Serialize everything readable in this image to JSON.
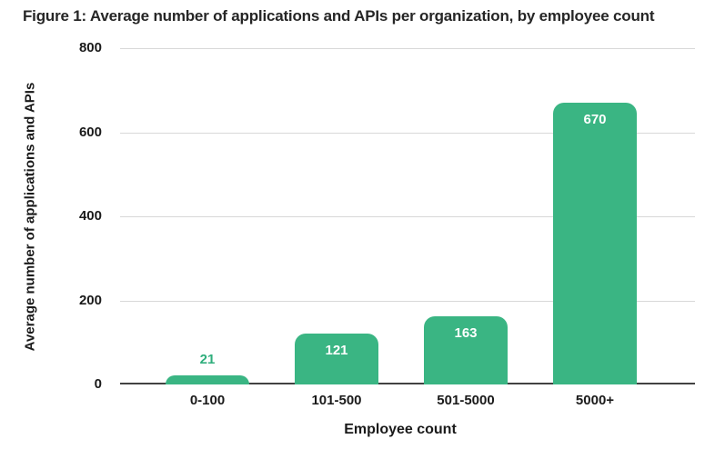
{
  "chart_data": {
    "type": "bar",
    "title": "Figure 1: Average number of applications and APIs per organization, by employee count",
    "categories": [
      "0-100",
      "101-500",
      "501-5000",
      "5000+"
    ],
    "values": [
      21,
      121,
      163,
      670
    ],
    "xlabel": "Employee count",
    "ylabel": "Average number of applications and APIs",
    "ylim": [
      0,
      800
    ],
    "yticks": [
      0,
      200,
      400,
      600,
      800
    ],
    "grid": true,
    "legend": "none",
    "bar_color": "#3AB583",
    "value_label_color_inside": "#FFFFFF",
    "value_label_color_outside": "#2FAE7C",
    "gridline_color": "#D8D8D8",
    "axis_line_color": "#424242",
    "text_color": "#1A1A1A",
    "title_color": "#262626",
    "background_color": "#FFFFFF"
  }
}
